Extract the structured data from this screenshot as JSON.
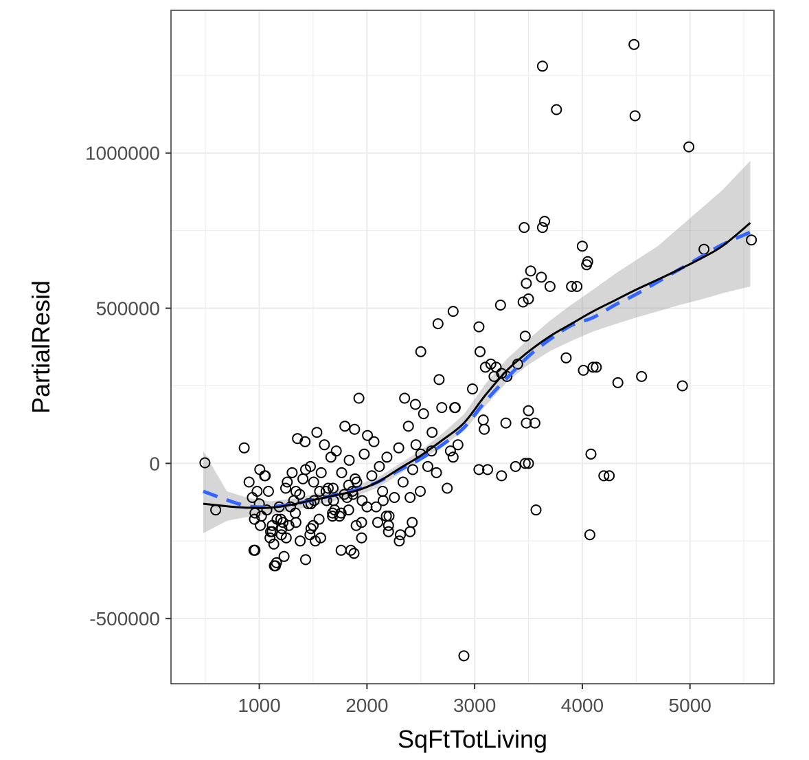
{
  "chart_data": {
    "type": "scatter",
    "title": "",
    "xlabel": "SqFtTotLiving",
    "ylabel": "PartialResid",
    "xlim": [
      180,
      5780
    ],
    "ylim": [
      -710000,
      1460000
    ],
    "x_ticks": [
      1000,
      2000,
      3000,
      4000,
      5000
    ],
    "y_ticks": [
      -500000,
      0,
      500000,
      1000000
    ],
    "x_tick_labels": [
      "1000",
      "2000",
      "3000",
      "4000",
      "5000"
    ],
    "y_tick_labels": [
      "-500000",
      "0",
      "500000",
      "1000000"
    ],
    "grid": true,
    "legend": "none",
    "colors": {
      "points": "#000000",
      "smooth_line": "#000000",
      "spline_line": "#3366ff",
      "band": "#999999",
      "grid": "#ebebeb"
    },
    "points": {
      "x": [
        495,
        595,
        860,
        905,
        935,
        955,
        980,
        1000,
        1005,
        1020,
        1055,
        1085,
        1105,
        1135,
        1165,
        1185,
        1205,
        1245,
        1275,
        1305,
        1335,
        1355,
        1375,
        1405,
        1425,
        1455,
        1475,
        1505,
        1535,
        1555,
        1575,
        1605,
        1625,
        1665,
        1685,
        1715,
        1745,
        1765,
        1795,
        1815,
        1835,
        1865,
        1885,
        1905,
        1925,
        1955,
        1975,
        2005,
        2045,
        2065,
        2085,
        2115,
        2145,
        2185,
        2205,
        2255,
        2295,
        2335,
        2385,
        2425,
        2455,
        2495,
        2525,
        2565,
        2605,
        2645,
        2695,
        2745,
        2775,
        2815,
        2845,
        1070,
        1200,
        1320,
        1480,
        1700,
        1950,
        2100,
        2500,
        2600,
        2800,
        1140,
        1230,
        1380,
        1570,
        1760,
        1900,
        2180,
        2400,
        1050,
        1260,
        1430,
        1640,
        1890,
        2000,
        1120,
        1340,
        1510,
        1760,
        960,
        1100,
        1210,
        1500,
        1680,
        1830,
        2150,
        3050,
        3100,
        3150,
        3200,
        3250,
        3300,
        3400,
        3450,
        3480,
        3500,
        3520,
        3560,
        3620,
        3650,
        3700,
        3850,
        3950,
        4000,
        4050,
        4100,
        4250,
        4330,
        4550,
        4930,
        5130,
        5570,
        2500,
        2660,
        2670,
        2820,
        2800,
        2980,
        3040,
        3080,
        3120,
        3180,
        3240,
        3380,
        3470,
        3090,
        3040,
        3250,
        3290,
        2900,
        2310,
        2200,
        2400,
        3630,
        3760,
        4480,
        4490,
        4990,
        3460,
        3630,
        4010,
        4040,
        3470,
        3480,
        3500,
        3900,
        4080,
        3570,
        4070,
        4130,
        4200,
        1150,
        1160,
        1430,
        950,
        1250,
        1470,
        1520,
        1850,
        1880,
        2420,
        3500,
        1120,
        1220,
        2300,
        2350,
        2450,
        2200,
        1010,
        960,
        1950,
        1830,
        1620,
        1560,
        1790,
        1340,
        1870,
        1690,
        1480,
        1290,
        1680
      ],
      "y": [
        2000,
        -150000,
        50000,
        -60000,
        -110000,
        -180000,
        -90000,
        -130000,
        -20000,
        -170000,
        -40000,
        -90000,
        -220000,
        -260000,
        -180000,
        -140000,
        -230000,
        -80000,
        -200000,
        -30000,
        -160000,
        80000,
        -100000,
        -50000,
        70000,
        -130000,
        -10000,
        -60000,
        100000,
        -180000,
        -30000,
        60000,
        -120000,
        20000,
        -80000,
        40000,
        -170000,
        -30000,
        120000,
        -110000,
        10000,
        -90000,
        110000,
        -60000,
        210000,
        -120000,
        30000,
        90000,
        -40000,
        70000,
        -140000,
        -10000,
        -90000,
        20000,
        -170000,
        -110000,
        50000,
        -60000,
        120000,
        -20000,
        60000,
        -90000,
        160000,
        -10000,
        100000,
        -30000,
        180000,
        -80000,
        40000,
        180000,
        60000,
        -150000,
        -180000,
        -120000,
        -210000,
        -150000,
        -240000,
        -190000,
        30000,
        40000,
        20000,
        -330000,
        -300000,
        -250000,
        -240000,
        -280000,
        -200000,
        -170000,
        -110000,
        -40000,
        -60000,
        -20000,
        -80000,
        -50000,
        -140000,
        -220000,
        -190000,
        -120000,
        -160000,
        -280000,
        -240000,
        -210000,
        -200000,
        -170000,
        -150000,
        -120000,
        360000,
        310000,
        320000,
        310000,
        290000,
        280000,
        320000,
        520000,
        580000,
        530000,
        620000,
        130000,
        600000,
        780000,
        570000,
        340000,
        570000,
        700000,
        650000,
        310000,
        -40000,
        260000,
        280000,
        250000,
        690000,
        720000,
        360000,
        450000,
        270000,
        180000,
        490000,
        240000,
        440000,
        140000,
        -20000,
        280000,
        510000,
        -10000,
        410000,
        110000,
        -20000,
        -40000,
        130000,
        -620000,
        -230000,
        -200000,
        -220000,
        1280000,
        1140000,
        1350000,
        1120000,
        1020000,
        760000,
        760000,
        300000,
        640000,
        0,
        130000,
        170000,
        570000,
        30000,
        -150000,
        -230000,
        310000,
        -40000,
        -330000,
        -320000,
        -310000,
        -280000,
        -240000,
        -230000,
        -250000,
        -280000,
        -290000,
        -190000,
        0,
        -200000,
        -190000,
        -250000,
        210000,
        190000,
        -220000,
        -200000,
        -160000,
        -190000,
        -70000,
        -90000,
        -90000,
        -100000,
        -90000,
        -100000,
        -120000,
        -130000,
        -140000,
        -160000
      ]
    },
    "smooth": {
      "x": [
        480,
        700,
        900,
        1100,
        1300,
        1500,
        1700,
        1900,
        2100,
        2300,
        2500,
        2700,
        2900,
        3100,
        3300,
        3500,
        3700,
        3900,
        4100,
        4300,
        4500,
        4700,
        4900,
        5100,
        5300,
        5560
      ],
      "y": [
        -130000,
        -138000,
        -143000,
        -143000,
        -133000,
        -118000,
        -103000,
        -88000,
        -60000,
        -17000,
        25000,
        75000,
        130000,
        220000,
        300000,
        360000,
        410000,
        450000,
        490000,
        525000,
        560000,
        592000,
        625000,
        660000,
        700000,
        775000
      ],
      "band_upper": [
        40000,
        -90000,
        -112000,
        -122000,
        -115000,
        -100000,
        -87000,
        -72000,
        -45000,
        -2000,
        42000,
        96000,
        158000,
        256000,
        337000,
        400000,
        460000,
        512000,
        560000,
        610000,
        655000,
        700000,
        760000,
        820000,
        880000,
        975000
      ],
      "band_lower": [
        -225000,
        -185000,
        -172000,
        -165000,
        -152000,
        -137000,
        -120000,
        -105000,
        -78000,
        -35000,
        10000,
        55000,
        105000,
        185000,
        262000,
        318000,
        362000,
        395000,
        425000,
        448000,
        470000,
        490000,
        510000,
        528000,
        548000,
        570000
      ]
    },
    "spline": {
      "x": [
        480,
        700,
        900,
        1100,
        1300,
        1500,
        1700,
        1900,
        2100,
        2300,
        2500,
        2700,
        2900,
        3100,
        3300,
        3500,
        3700,
        3900,
        4100,
        4300,
        4500,
        4700,
        4900,
        5100,
        5300,
        5560
      ],
      "y": [
        -90000,
        -118000,
        -138000,
        -140000,
        -132000,
        -118000,
        -102000,
        -85000,
        -60000,
        -22000,
        15000,
        60000,
        115000,
        200000,
        275000,
        345000,
        400000,
        445000,
        470000,
        510000,
        545000,
        585000,
        625000,
        665000,
        705000,
        745000
      ]
    }
  }
}
